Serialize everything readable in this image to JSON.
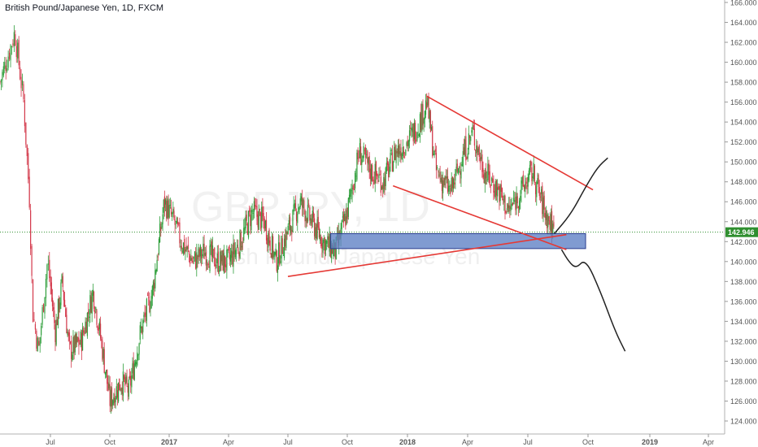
{
  "header": {
    "title": "British Pound/Japanese Yen, 1D, FXCM"
  },
  "watermark": {
    "symbol": "GBPJPY, 1D",
    "description": "British Pound/Japanese Yen"
  },
  "price_badge": {
    "label": "142.946",
    "color": "#2f8f2f"
  },
  "colors": {
    "up": "#53b987",
    "down": "#eb4d5c",
    "candle_up": "#2e9e3a",
    "candle_down": "#d3384a",
    "trendline": "#e53935",
    "zone_fill": "#5c7fc4",
    "zone_stroke": "#2a3f8f",
    "projection": "#222222",
    "axis_text": "#555555",
    "grid_dot": "#2f8f2f"
  },
  "chart_data": {
    "type": "candlestick",
    "title": "British Pound/Japanese Yen, 1D, FXCM",
    "xlabel": "",
    "ylabel": "",
    "ylim": [
      123,
      166
    ],
    "x_ticks": [
      "Jul",
      "Oct",
      "2017",
      "Apr",
      "Jul",
      "Oct",
      "2018",
      "Apr",
      "Jul",
      "Oct",
      "2019",
      "Apr"
    ],
    "y_ticks": [
      "124.000",
      "126.000",
      "128.000",
      "130.000",
      "132.000",
      "134.000",
      "136.000",
      "138.000",
      "140.000",
      "142.000",
      "144.000",
      "146.000",
      "148.000",
      "150.000",
      "152.000",
      "154.000",
      "156.000",
      "158.000",
      "160.000",
      "162.000",
      "164.000",
      "166.000"
    ],
    "last_price": 142.946,
    "series": [
      {
        "values": [
          [
            2016.33,
            158
          ],
          [
            2016.38,
            163
          ],
          [
            2016.41,
            156
          ],
          [
            2016.43,
            146
          ],
          [
            2016.44,
            135
          ],
          [
            2016.46,
            131
          ],
          [
            2016.49,
            140
          ],
          [
            2016.52,
            133
          ],
          [
            2016.55,
            138
          ],
          [
            2016.58,
            131
          ],
          [
            2016.63,
            132
          ],
          [
            2016.68,
            137
          ],
          [
            2016.72,
            131
          ],
          [
            2016.75,
            126
          ],
          [
            2016.8,
            128
          ],
          [
            2016.83,
            127
          ],
          [
            2016.88,
            133
          ],
          [
            2016.93,
            137
          ],
          [
            2016.98,
            146
          ],
          [
            2017.02,
            144
          ],
          [
            2017.05,
            142
          ],
          [
            2017.1,
            140
          ],
          [
            2017.15,
            141
          ],
          [
            2017.2,
            140
          ],
          [
            2017.25,
            140
          ],
          [
            2017.3,
            142
          ],
          [
            2017.35,
            145
          ],
          [
            2017.4,
            144
          ],
          [
            2017.45,
            140
          ],
          [
            2017.5,
            143
          ],
          [
            2017.55,
            146
          ],
          [
            2017.6,
            144
          ],
          [
            2017.65,
            142
          ],
          [
            2017.7,
            141
          ],
          [
            2017.75,
            145
          ],
          [
            2017.8,
            151
          ],
          [
            2017.85,
            149
          ],
          [
            2017.9,
            148
          ],
          [
            2017.95,
            151
          ],
          [
            2018.0,
            152
          ],
          [
            2018.05,
            154
          ],
          [
            2018.08,
            156
          ],
          [
            2018.12,
            149
          ],
          [
            2018.18,
            147
          ],
          [
            2018.22,
            150
          ],
          [
            2018.27,
            153
          ],
          [
            2018.32,
            149
          ],
          [
            2018.38,
            147
          ],
          [
            2018.42,
            145
          ],
          [
            2018.47,
            147
          ],
          [
            2018.52,
            149
          ],
          [
            2018.57,
            145
          ],
          [
            2018.61,
            143
          ]
        ]
      }
    ],
    "annotations": {
      "support_zone": {
        "y_range": [
          141.3,
          142.8
        ]
      },
      "trendlines": [
        {
          "from": [
            2017.5,
            138.5
          ],
          "to": [
            2018.66,
            142.7
          ]
        },
        {
          "from": [
            2018.08,
            156.6
          ],
          "to": [
            2018.77,
            147.2
          ]
        },
        {
          "from": [
            2017.94,
            147.6
          ],
          "to": [
            2018.66,
            141.2
          ]
        }
      ],
      "projections": [
        {
          "points": [
            [
              2018.61,
              142.8
            ],
            [
              2018.68,
              144.8
            ],
            [
              2018.74,
              147.5
            ],
            [
              2018.79,
              149.5
            ],
            [
              2018.83,
              150.4
            ]
          ]
        },
        {
          "points": [
            [
              2018.64,
              141.2
            ],
            [
              2018.67,
              140.0
            ],
            [
              2018.7,
              139.3
            ],
            [
              2018.74,
              140.3
            ],
            [
              2018.8,
              137.0
            ],
            [
              2018.86,
              133.0
            ],
            [
              2018.9,
              131.0
            ]
          ]
        }
      ]
    }
  }
}
